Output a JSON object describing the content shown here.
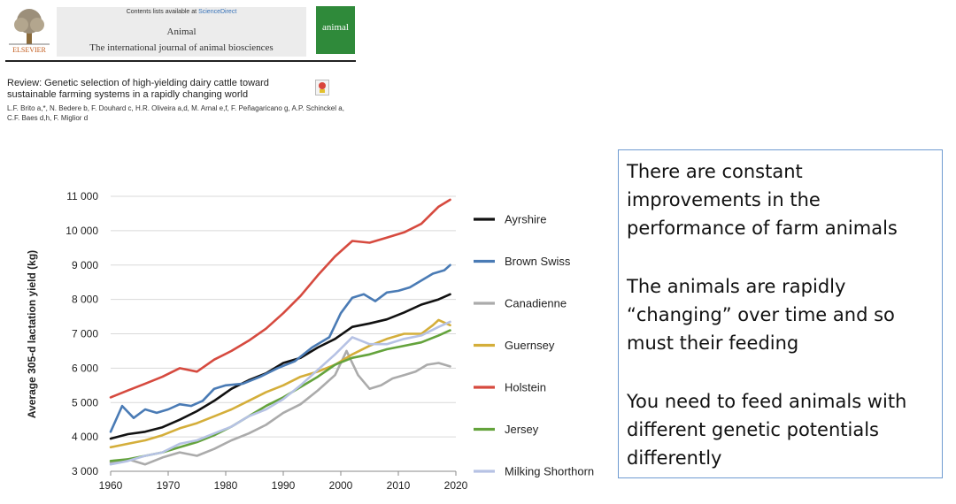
{
  "header": {
    "availability_prefix": "Contents lists available at",
    "availability_link": "ScienceDirect",
    "journal_name": "Animal",
    "journal_subtitle": "The international journal of animal biosciences",
    "publisher": "ELSEVIER",
    "cover_word": "animal"
  },
  "article": {
    "title_line1": "Review: Genetic selection of high-yielding dairy cattle toward",
    "title_line2": "sustainable farming systems in a rapidly changing world",
    "authors_line1": "L.F. Brito a,*, N. Bedere b, F. Douhard c, H.R. Oliveira a,d, M. Arnal e,f, F. Peñagaricano g, A.P. Schinckel a,",
    "authors_line2": "C.F. Baes d,h, F. Miglior d"
  },
  "box": {
    "para1": "There are constant improvements in the performance of farm animals",
    "para2": "The animals are rapidly “changing” over time and so must their feeding",
    "para3": "You need to feed animals with different genetic potentials differently"
  },
  "chart_data": {
    "type": "line",
    "title": "",
    "xlabel": "",
    "ylabel": "Average 305-d lactation yield (kg)",
    "xlim": [
      1960,
      2020
    ],
    "ylim": [
      3000,
      11000
    ],
    "xticks": [
      "1960",
      "1970",
      "1980",
      "1990",
      "2000",
      "2010",
      "2020"
    ],
    "yticks": [
      "3 000",
      "4 000",
      "5 000",
      "6 000",
      "7 000",
      "8 000",
      "9 000",
      "10 000",
      "11 000"
    ],
    "grid": "horizontal",
    "legend_position": "right",
    "series": [
      {
        "name": "Ayrshire",
        "color": "#111111",
        "x": [
          1960,
          1963,
          1966,
          1969,
          1972,
          1975,
          1978,
          1981,
          1984,
          1987,
          1990,
          1993,
          1996,
          1999,
          2002,
          2005,
          2008,
          2011,
          2014,
          2017,
          2019
        ],
        "y": [
          3950,
          4080,
          4150,
          4280,
          4500,
          4750,
          5050,
          5400,
          5650,
          5850,
          6150,
          6300,
          6600,
          6850,
          7200,
          7300,
          7420,
          7620,
          7850,
          8000,
          8150
        ]
      },
      {
        "name": "Brown Swiss",
        "color": "#4a7bb5",
        "x": [
          1960,
          1962,
          1964,
          1966,
          1968,
          1970,
          1972,
          1974,
          1976,
          1978,
          1980,
          1983,
          1986,
          1989,
          1992,
          1995,
          1998,
          2000,
          2002,
          2004,
          2006,
          2008,
          2010,
          2012,
          2014,
          2016,
          2018,
          2019
        ],
        "y": [
          4150,
          4900,
          4550,
          4800,
          4700,
          4800,
          4950,
          4900,
          5050,
          5400,
          5500,
          5550,
          5750,
          6000,
          6200,
          6600,
          6900,
          7600,
          8050,
          8150,
          7950,
          8200,
          8250,
          8350,
          8550,
          8750,
          8850,
          9000
        ]
      },
      {
        "name": "Canadienne",
        "color": "#ababab",
        "x": [
          1960,
          1963,
          1966,
          1969,
          1972,
          1975,
          1978,
          1981,
          1984,
          1987,
          1990,
          1993,
          1996,
          1999,
          2001,
          2003,
          2005,
          2007,
          2009,
          2011,
          2013,
          2015,
          2017,
          2019
        ],
        "y": [
          3250,
          3350,
          3200,
          3400,
          3550,
          3450,
          3650,
          3900,
          4100,
          4350,
          4700,
          4950,
          5350,
          5800,
          6500,
          5800,
          5400,
          5500,
          5700,
          5800,
          5900,
          6100,
          6150,
          6050
        ]
      },
      {
        "name": "Guernsey",
        "color": "#d4ae3a",
        "x": [
          1960,
          1963,
          1966,
          1969,
          1972,
          1975,
          1978,
          1981,
          1984,
          1987,
          1990,
          1993,
          1996,
          1999,
          2002,
          2005,
          2008,
          2011,
          2014,
          2016,
          2017,
          2019
        ],
        "y": [
          3700,
          3800,
          3900,
          4050,
          4250,
          4400,
          4600,
          4800,
          5050,
          5300,
          5500,
          5750,
          5900,
          6100,
          6400,
          6650,
          6850,
          7000,
          7000,
          7250,
          7400,
          7250
        ]
      },
      {
        "name": "Holstein",
        "color": "#d64a3f",
        "x": [
          1960,
          1963,
          1966,
          1969,
          1972,
          1975,
          1978,
          1981,
          1984,
          1987,
          1990,
          1993,
          1996,
          1999,
          2002,
          2005,
          2008,
          2011,
          2014,
          2017,
          2019
        ],
        "y": [
          5150,
          5350,
          5550,
          5750,
          6000,
          5900,
          6250,
          6500,
          6800,
          7150,
          7600,
          8100,
          8700,
          9250,
          9700,
          9650,
          9800,
          9950,
          10200,
          10700,
          10900
        ]
      },
      {
        "name": "Jersey",
        "color": "#64a33c",
        "x": [
          1960,
          1963,
          1966,
          1969,
          1972,
          1975,
          1978,
          1981,
          1984,
          1987,
          1990,
          1993,
          1996,
          1999,
          2002,
          2005,
          2008,
          2011,
          2014,
          2017,
          2019
        ],
        "y": [
          3300,
          3350,
          3450,
          3550,
          3700,
          3850,
          4050,
          4300,
          4600,
          4900,
          5150,
          5450,
          5750,
          6100,
          6300,
          6400,
          6550,
          6650,
          6750,
          6950,
          7100
        ]
      },
      {
        "name": "Milking Shorthorn",
        "color": "#b6c2e4",
        "x": [
          1960,
          1963,
          1966,
          1969,
          1972,
          1975,
          1978,
          1981,
          1984,
          1987,
          1990,
          1993,
          1996,
          1999,
          2002,
          2005,
          2008,
          2011,
          2014,
          2017,
          2019
        ],
        "y": [
          3200,
          3300,
          3450,
          3550,
          3800,
          3900,
          4100,
          4300,
          4600,
          4800,
          5100,
          5500,
          5950,
          6400,
          6900,
          6700,
          6700,
          6850,
          6950,
          7200,
          7350
        ]
      }
    ]
  }
}
